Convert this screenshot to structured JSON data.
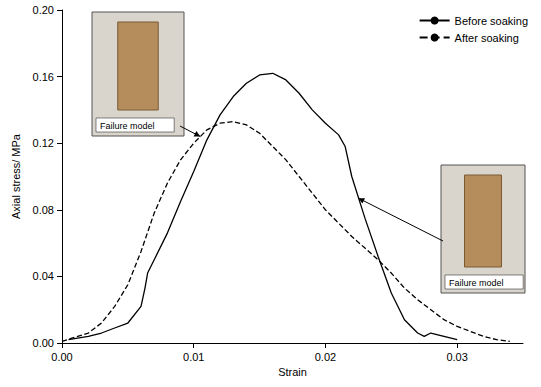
{
  "chart_data": {
    "type": "line",
    "x_label": "Strain",
    "y_label": "Axial stress/ MPa",
    "xlim": [
      0,
      0.035
    ],
    "xticks": [
      {
        "value": 0,
        "label": "0.00"
      },
      {
        "value": 0.01,
        "label": "0.01"
      },
      {
        "value": 0.02,
        "label": "0.02"
      },
      {
        "value": 0.03,
        "label": "0.03"
      }
    ],
    "ylim": [
      0,
      0.2
    ],
    "yticks": [
      {
        "value": 0,
        "label": "0.00"
      },
      {
        "value": 0.04,
        "label": "0.04"
      },
      {
        "value": 0.08,
        "label": "0.08"
      },
      {
        "value": 0.12,
        "label": "0.12"
      },
      {
        "value": 0.16,
        "label": "0.16"
      },
      {
        "value": 0.2,
        "label": "0.20"
      }
    ],
    "grid": false,
    "legend": "top-right",
    "series": [
      {
        "name": "Before soaking",
        "color": "#000000",
        "line_style": "solid",
        "x": [
          0.0005,
          0.002,
          0.003,
          0.004,
          0.005,
          0.006,
          0.0063,
          0.0065,
          0.007,
          0.008,
          0.009,
          0.01,
          0.011,
          0.012,
          0.013,
          0.014,
          0.015,
          0.016,
          0.017,
          0.018,
          0.019,
          0.02,
          0.021,
          0.0215,
          0.022,
          0.023,
          0.024,
          0.025,
          0.026,
          0.027,
          0.0275,
          0.028,
          0.029,
          0.03
        ],
        "values": [
          0.002,
          0.004,
          0.006,
          0.009,
          0.012,
          0.022,
          0.033,
          0.042,
          0.05,
          0.066,
          0.085,
          0.103,
          0.122,
          0.137,
          0.148,
          0.156,
          0.161,
          0.162,
          0.158,
          0.15,
          0.14,
          0.132,
          0.125,
          0.118,
          0.1,
          0.075,
          0.052,
          0.03,
          0.014,
          0.006,
          0.004,
          0.006,
          0.004,
          0.002
        ]
      },
      {
        "name": "After soaking",
        "color": "#000000",
        "line_style": "dashed",
        "x": [
          0,
          0.002,
          0.003,
          0.004,
          0.005,
          0.006,
          0.007,
          0.008,
          0.009,
          0.01,
          0.011,
          0.012,
          0.013,
          0.014,
          0.015,
          0.016,
          0.017,
          0.018,
          0.019,
          0.02,
          0.021,
          0.022,
          0.023,
          0.024,
          0.025,
          0.026,
          0.027,
          0.028,
          0.029,
          0.03,
          0.031,
          0.032,
          0.033,
          0.034
        ],
        "values": [
          0.001,
          0.006,
          0.012,
          0.022,
          0.035,
          0.055,
          0.078,
          0.096,
          0.11,
          0.12,
          0.128,
          0.132,
          0.133,
          0.131,
          0.126,
          0.118,
          0.11,
          0.1,
          0.09,
          0.08,
          0.072,
          0.064,
          0.057,
          0.05,
          0.042,
          0.033,
          0.026,
          0.02,
          0.014,
          0.01,
          0.007,
          0.004,
          0.002,
          0.001
        ]
      }
    ],
    "annotations": [
      {
        "text": "Failure model",
        "x": 0.0105,
        "y": 0.124
      },
      {
        "text": "Failure model",
        "x": 0.0225,
        "y": 0.087
      }
    ]
  }
}
